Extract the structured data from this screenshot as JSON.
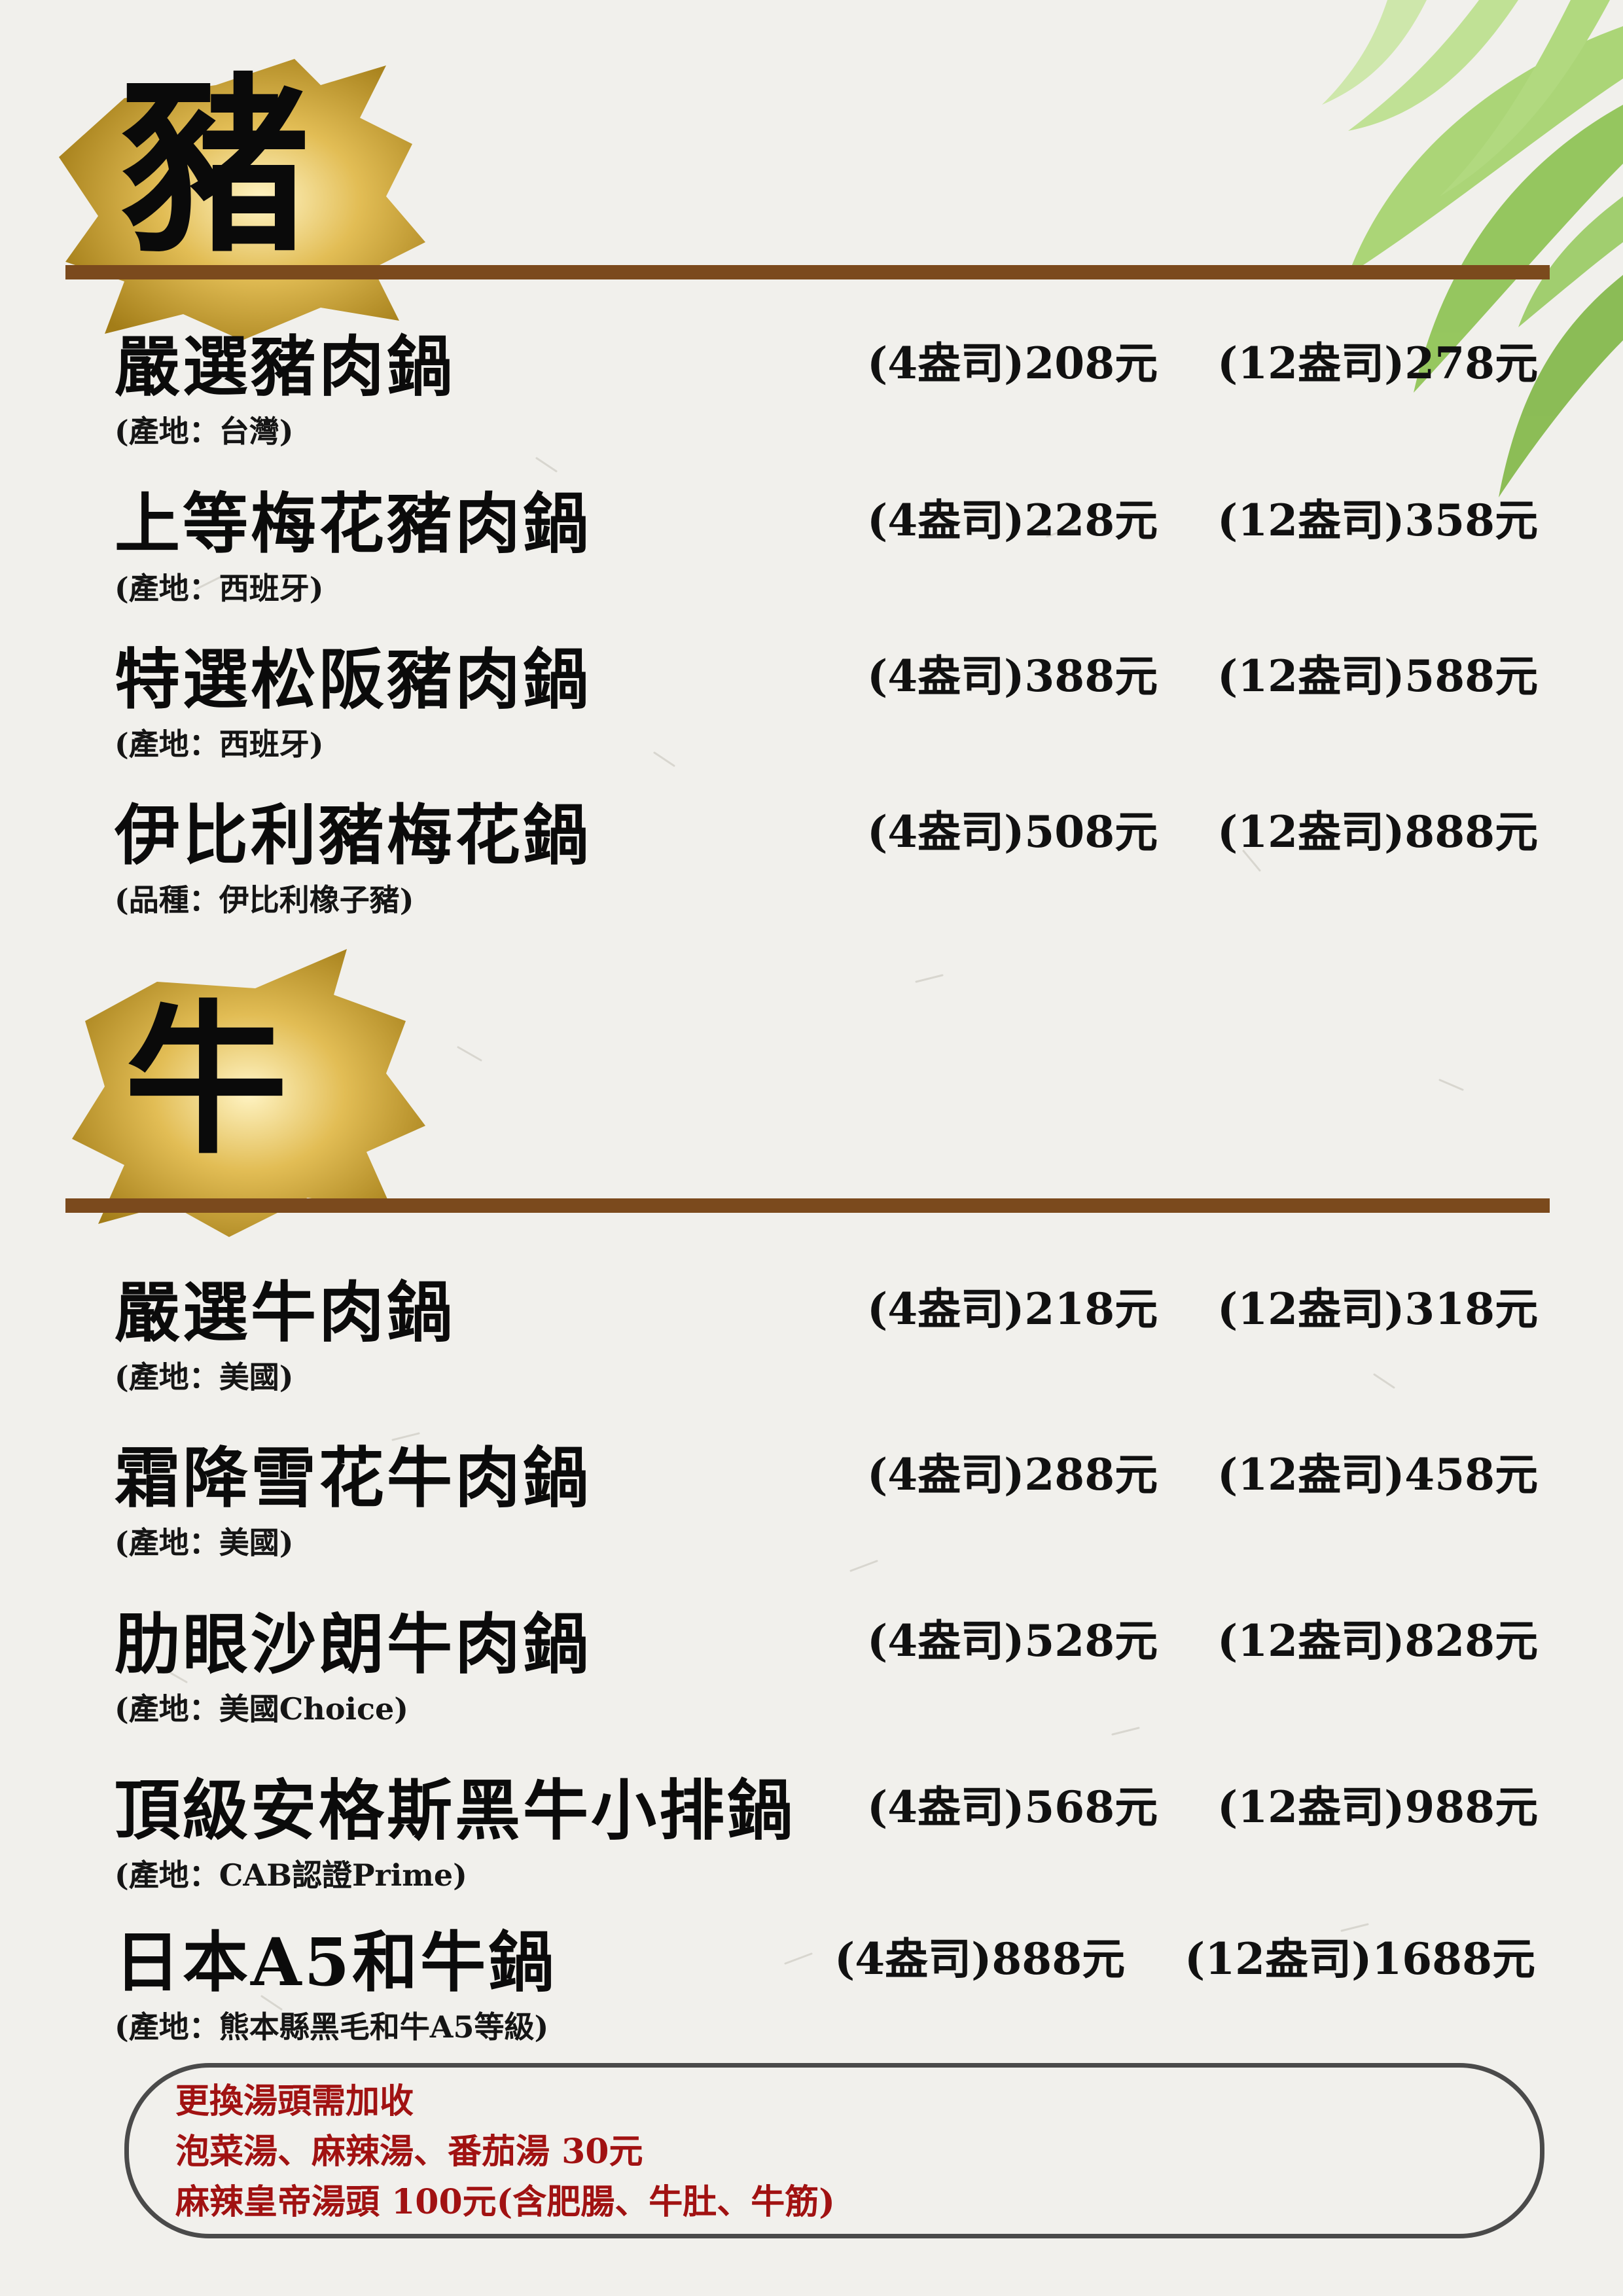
{
  "sections": {
    "pork": {
      "heading": "豬"
    },
    "beef": {
      "heading": "牛"
    }
  },
  "pork_items": [
    {
      "name": "嚴選豬肉鍋",
      "origin": "(產地：台灣)",
      "price_small": "(4盎司)208元",
      "price_large": "(12盎司)278元"
    },
    {
      "name": "上等梅花豬肉鍋",
      "origin": "(產地：西班牙)",
      "price_small": "(4盎司)228元",
      "price_large": "(12盎司)358元"
    },
    {
      "name": "特選松阪豬肉鍋",
      "origin": "(產地：西班牙)",
      "price_small": "(4盎司)388元",
      "price_large": "(12盎司)588元"
    },
    {
      "name": "伊比利豬梅花鍋",
      "origin": "(品種：伊比利橡子豬)",
      "price_small": "(4盎司)508元",
      "price_large": "(12盎司)888元"
    }
  ],
  "beef_items": [
    {
      "name": "嚴選牛肉鍋",
      "origin": "(產地：美國)",
      "price_small": "(4盎司)218元",
      "price_large": "(12盎司)318元"
    },
    {
      "name": "霜降雪花牛肉鍋",
      "origin": "(產地：美國)",
      "price_small": "(4盎司)288元",
      "price_large": "(12盎司)458元"
    },
    {
      "name": "肋眼沙朗牛肉鍋",
      "origin": "(產地：美國Choice)",
      "price_small": "(4盎司)528元",
      "price_large": "(12盎司)828元"
    },
    {
      "name": "頂級安格斯黑牛小排鍋",
      "origin": "(產地：CAB認證Prime)",
      "price_small": "(4盎司)568元",
      "price_large": "(12盎司)988元"
    },
    {
      "name": "日本A5和牛鍋",
      "origin": "(產地：熊本縣黑毛和牛A5等級)",
      "price_small": "(4盎司)888元",
      "price_large": "(12盎司)1688元"
    }
  ],
  "note": {
    "line1": "更換湯頭需加收",
    "line2": "泡菜湯、麻辣湯、番茄湯 30元",
    "line3": "麻辣皇帝湯頭 100元(含肥腸、牛肚、牛筋)"
  },
  "colors": {
    "rule": "#7b4a1d",
    "gold": "#c9a227",
    "note_text": "#a11212",
    "leaf": "#8cc84b"
  }
}
